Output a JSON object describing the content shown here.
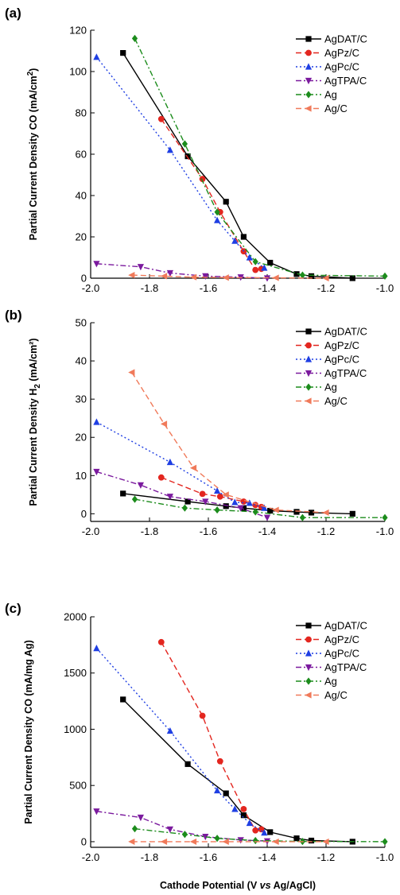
{
  "colors": {
    "AgDAT/C": "#000000",
    "AgPz/C": "#e3261f",
    "AgPc/C": "#1f3fe3",
    "AgTPA/C": "#7b1a9e",
    "Ag": "#1c8c1c",
    "Ag/C": "#f07a5a"
  },
  "xlabel_parts": {
    "pre": "Cathode Potential (V ",
    "italic": "vs",
    "post": " Ag/AgCl)"
  },
  "chart_data": [
    {
      "type": "line",
      "panel_label": "(a)",
      "ylabel_parts": {
        "pre": "Partial Current Density CO (mA/cm",
        "sup": "2",
        "sub": "",
        "post": ")"
      },
      "xlim": [
        -2.0,
        -1.0
      ],
      "ylim": [
        0,
        120
      ],
      "xticks": [
        "-2.0",
        "-1.8",
        "-1.6",
        "-1.4",
        "-1.2",
        "-1.0"
      ],
      "yticks": [
        "0",
        "20",
        "40",
        "60",
        "80",
        "100",
        "120"
      ],
      "grid": false,
      "legend_position": "top-right",
      "series": [
        {
          "name": "AgDAT/C",
          "marker": "square",
          "dash": "solid",
          "x": [
            -1.89,
            -1.67,
            -1.54,
            -1.48,
            -1.39,
            -1.3,
            -1.25,
            -1.11
          ],
          "y": [
            109,
            59,
            37,
            20,
            7.5,
            2,
            1,
            0
          ]
        },
        {
          "name": "AgPz/C",
          "marker": "circle",
          "dash": "dashed",
          "x": [
            -1.76,
            -1.62,
            -1.56,
            -1.48,
            -1.44,
            -1.42
          ],
          "y": [
            77,
            48,
            32,
            13,
            4,
            4.5
          ]
        },
        {
          "name": "AgPc/C",
          "marker": "triangle-up",
          "dash": "dotted",
          "x": [
            -1.98,
            -1.73,
            -1.57,
            -1.51,
            -1.46,
            -1.41
          ],
          "y": [
            107,
            62,
            28,
            18,
            10,
            5
          ]
        },
        {
          "name": "AgTPA/C",
          "marker": "triangle-down",
          "dash": "dashdot",
          "x": [
            -1.98,
            -1.83,
            -1.73,
            -1.61,
            -1.49,
            -1.4
          ],
          "y": [
            7,
            5.5,
            2.5,
            1,
            0.5,
            0
          ]
        },
        {
          "name": "Ag",
          "marker": "diamond",
          "dash": "dashdot",
          "x": [
            -1.85,
            -1.68,
            -1.57,
            -1.44,
            -1.28,
            -1.0
          ],
          "y": [
            116,
            65,
            32,
            8,
            1.5,
            1
          ]
        },
        {
          "name": "Ag/C",
          "marker": "triangle-left",
          "dash": "dashed",
          "x": [
            -1.86,
            -1.75,
            -1.65,
            -1.54,
            -1.37,
            -1.2
          ],
          "y": [
            1.5,
            1,
            0.5,
            0.3,
            0.2,
            0
          ]
        }
      ]
    },
    {
      "type": "line",
      "panel_label": "(b)",
      "ylabel_parts": {
        "pre": "Partial Current Density H",
        "sup": "",
        "sub": "2",
        "post": " (mA/cm²)"
      },
      "xlim": [
        -2.0,
        -1.0
      ],
      "ylim": [
        -2,
        50
      ],
      "xticks": [
        "-2.0",
        "-1.8",
        "-1.6",
        "-1.4",
        "-1.2",
        "-1.0"
      ],
      "yticks": [
        "0",
        "10",
        "20",
        "30",
        "40",
        "50"
      ],
      "ytick_values": [
        0,
        10,
        20,
        30,
        40,
        50
      ],
      "grid": false,
      "legend_position": "top-right",
      "series": [
        {
          "name": "AgDAT/C",
          "marker": "square",
          "dash": "solid",
          "x": [
            -1.89,
            -1.67,
            -1.54,
            -1.48,
            -1.39,
            -1.3,
            -1.25,
            -1.11
          ],
          "y": [
            5.3,
            3.2,
            2.0,
            1.5,
            0.8,
            0.5,
            0.3,
            0
          ]
        },
        {
          "name": "AgPz/C",
          "marker": "circle",
          "dash": "dashed",
          "x": [
            -1.76,
            -1.62,
            -1.56,
            -1.48,
            -1.44,
            -1.42
          ],
          "y": [
            9.5,
            5.2,
            4.5,
            3.2,
            2.3,
            1.8
          ]
        },
        {
          "name": "AgPc/C",
          "marker": "triangle-up",
          "dash": "dotted",
          "x": [
            -1.98,
            -1.73,
            -1.57,
            -1.51,
            -1.46,
            -1.41
          ],
          "y": [
            24,
            13.5,
            6,
            3,
            2.8,
            1.5
          ]
        },
        {
          "name": "AgTPA/C",
          "marker": "triangle-down",
          "dash": "dashdot",
          "x": [
            -1.98,
            -1.83,
            -1.73,
            -1.61,
            -1.49,
            -1.4
          ],
          "y": [
            11,
            7.5,
            4.5,
            3.2,
            1.5,
            -1
          ]
        },
        {
          "name": "Ag",
          "marker": "diamond",
          "dash": "dashdot",
          "x": [
            -1.85,
            -1.68,
            -1.57,
            -1.44,
            -1.28,
            -1.0
          ],
          "y": [
            3.8,
            1.5,
            1.0,
            0.5,
            -1.0,
            -1.0
          ]
        },
        {
          "name": "Ag/C",
          "marker": "triangle-left",
          "dash": "dashed",
          "x": [
            -1.86,
            -1.75,
            -1.65,
            -1.54,
            -1.37,
            -1.2
          ],
          "y": [
            37,
            23.5,
            12,
            5,
            1.0,
            0.3
          ]
        }
      ]
    },
    {
      "type": "line",
      "panel_label": "(c)",
      "ylabel_parts": {
        "pre": "Partial Current Density CO (mA/mg Ag)",
        "sup": "",
        "sub": "",
        "post": ""
      },
      "xlim": [
        -2.0,
        -1.0
      ],
      "ylim": [
        -50,
        2000
      ],
      "xticks": [
        "-2.0",
        "-1.8",
        "-1.6",
        "-1.4",
        "-1.2",
        "-1.0"
      ],
      "yticks": [
        "0",
        "500",
        "1000",
        "1500",
        "2000"
      ],
      "ytick_values": [
        0,
        500,
        1000,
        1500,
        2000
      ],
      "grid": false,
      "legend_position": "top-right",
      "series": [
        {
          "name": "AgDAT/C",
          "marker": "square",
          "dash": "solid",
          "x": [
            -1.89,
            -1.67,
            -1.54,
            -1.48,
            -1.39,
            -1.3,
            -1.25,
            -1.11
          ],
          "y": [
            1265,
            690,
            430,
            235,
            85,
            30,
            10,
            0
          ]
        },
        {
          "name": "AgPz/C",
          "marker": "circle",
          "dash": "dashed",
          "x": [
            -1.76,
            -1.62,
            -1.56,
            -1.48,
            -1.44,
            -1.42
          ],
          "y": [
            1775,
            1120,
            715,
            290,
            100,
            110
          ]
        },
        {
          "name": "AgPc/C",
          "marker": "triangle-up",
          "dash": "dotted",
          "x": [
            -1.98,
            -1.73,
            -1.57,
            -1.51,
            -1.46,
            -1.41
          ],
          "y": [
            1720,
            985,
            455,
            290,
            165,
            80
          ]
        },
        {
          "name": "AgTPA/C",
          "marker": "triangle-down",
          "dash": "dashdot",
          "x": [
            -1.98,
            -1.83,
            -1.73,
            -1.61,
            -1.49,
            -1.4
          ],
          "y": [
            270,
            215,
            110,
            45,
            15,
            5
          ]
        },
        {
          "name": "Ag",
          "marker": "diamond",
          "dash": "dashdot",
          "x": [
            -1.85,
            -1.68,
            -1.57,
            -1.44,
            -1.28,
            -1.0
          ],
          "y": [
            115,
            65,
            30,
            10,
            2,
            0
          ]
        },
        {
          "name": "Ag/C",
          "marker": "triangle-left",
          "dash": "dashed",
          "x": [
            -1.86,
            -1.75,
            -1.65,
            -1.54,
            -1.37,
            -1.2
          ],
          "y": [
            0,
            0,
            0,
            0,
            0,
            0
          ]
        }
      ]
    }
  ]
}
